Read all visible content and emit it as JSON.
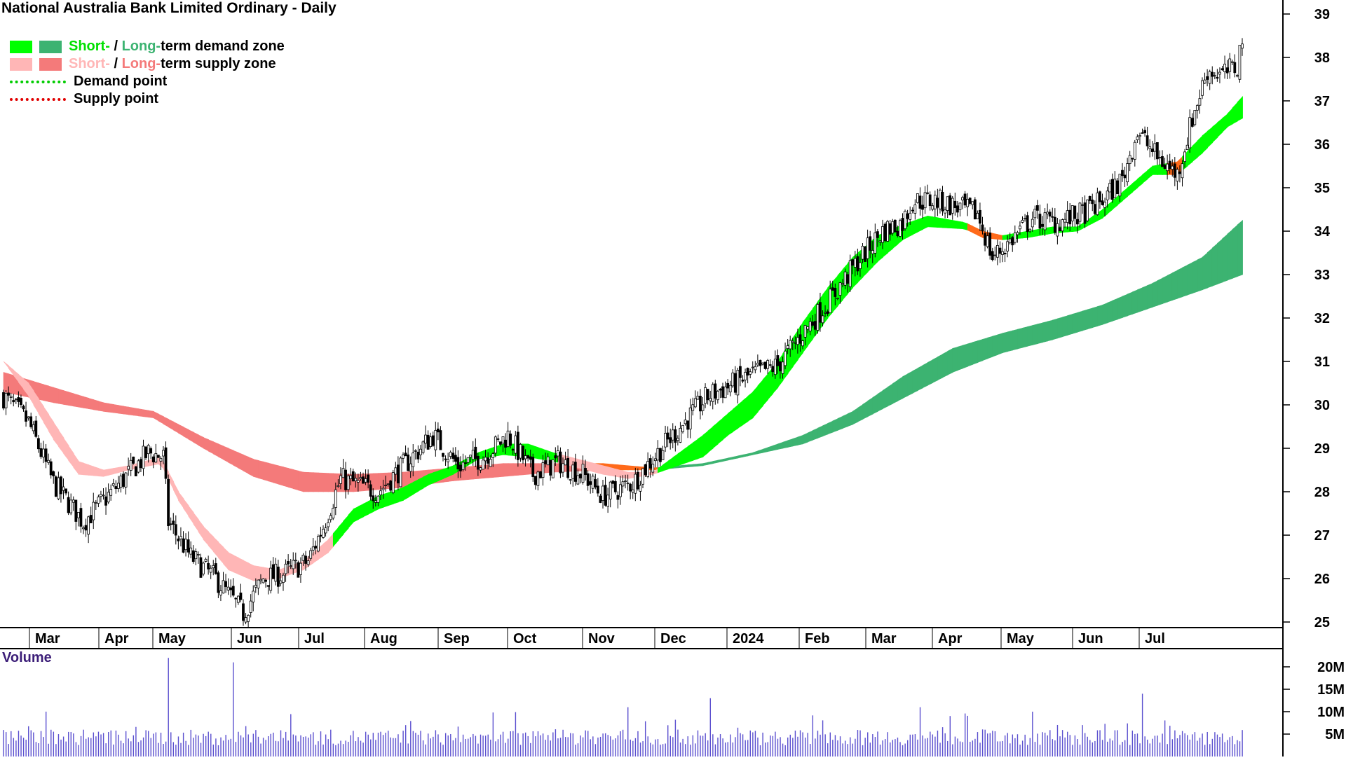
{
  "title": "National Australia Bank Limited Ordinary - Daily",
  "legend": {
    "demand": {
      "short": "Short-",
      "sep": " / ",
      "long": "Long-",
      "rest": "term demand zone"
    },
    "supply": {
      "short": "Short-",
      "sep": " / ",
      "long": "Long-",
      "rest": "term supply zone"
    },
    "demand_point": "Demand point",
    "supply_point": "Supply point"
  },
  "colors": {
    "short_demand": "#00ff00",
    "long_demand": "#3cb371",
    "short_supply": "#ffb6b6",
    "long_supply": "#f47a7a",
    "band_bearish_cross": "#ff6a1a",
    "demand_point": "#00cc00",
    "supply_point": "#e00000",
    "volume_bar": "#5a4fcf",
    "volume_label": "#3c1e78",
    "axis": "#000000"
  },
  "chart_data": [
    {
      "type": "candlestick",
      "title": "National Australia Bank Limited Ordinary - Daily",
      "y_ticks": [
        25,
        26,
        27,
        28,
        29,
        30,
        31,
        32,
        33,
        34,
        35,
        36,
        37,
        38,
        39
      ],
      "ylim": [
        24.7,
        39.3
      ],
      "x_ticks": [
        "Mar",
        "Apr",
        "May",
        "Jun",
        "Jul",
        "Aug",
        "Sep",
        "Oct",
        "Nov",
        "Dec",
        "2024",
        "Feb",
        "Mar",
        "Apr",
        "May",
        "Jun",
        "Jul"
      ],
      "price_path": [
        [
          0,
          30.2
        ],
        [
          10,
          29.6
        ],
        [
          20,
          28.2
        ],
        [
          32,
          27.3
        ],
        [
          45,
          28.1
        ],
        [
          58,
          28.9
        ],
        [
          64,
          28.8
        ],
        [
          66,
          27.3
        ],
        [
          75,
          26.5
        ],
        [
          85,
          26.0
        ],
        [
          96,
          25.2
        ],
        [
          104,
          26.0
        ],
        [
          112,
          26.1
        ],
        [
          122,
          26.4
        ],
        [
          128,
          27.2
        ],
        [
          135,
          28.3
        ],
        [
          150,
          28.0
        ],
        [
          162,
          28.7
        ],
        [
          172,
          29.3
        ],
        [
          182,
          28.6
        ],
        [
          192,
          28.8
        ],
        [
          202,
          29.3
        ],
        [
          212,
          28.4
        ],
        [
          222,
          28.7
        ],
        [
          232,
          28.4
        ],
        [
          240,
          27.9
        ],
        [
          252,
          28.2
        ],
        [
          262,
          28.9
        ],
        [
          282,
          30.2
        ],
        [
          300,
          30.7
        ],
        [
          310,
          30.9
        ],
        [
          322,
          31.8
        ],
        [
          332,
          32.5
        ],
        [
          342,
          33.3
        ],
        [
          352,
          34.0
        ],
        [
          360,
          34.2
        ],
        [
          364,
          34.7
        ],
        [
          374,
          34.7
        ],
        [
          390,
          34.4
        ],
        [
          396,
          33.4
        ],
        [
          402,
          33.7
        ],
        [
          412,
          34.3
        ],
        [
          422,
          34.2
        ],
        [
          432,
          34.4
        ],
        [
          440,
          34.7
        ],
        [
          448,
          35.2
        ],
        [
          454,
          36.3
        ],
        [
          462,
          35.7
        ],
        [
          470,
          35.3
        ],
        [
          476,
          36.6
        ],
        [
          482,
          37.7
        ],
        [
          488,
          37.6
        ],
        [
          494,
          37.8
        ],
        [
          496,
          38.5
        ]
      ],
      "short_term_band": {
        "upper": [
          [
            0,
            31.0
          ],
          [
            10,
            30.5
          ],
          [
            20,
            29.6
          ],
          [
            30,
            28.7
          ],
          [
            40,
            28.5
          ],
          [
            50,
            28.6
          ],
          [
            63,
            28.8
          ],
          [
            70,
            28.0
          ],
          [
            80,
            27.2
          ],
          [
            90,
            26.6
          ],
          [
            100,
            26.3
          ],
          [
            110,
            26.2
          ],
          [
            120,
            26.4
          ],
          [
            130,
            26.9
          ],
          [
            140,
            27.6
          ],
          [
            150,
            27.9
          ],
          [
            160,
            28.1
          ],
          [
            170,
            28.4
          ],
          [
            180,
            28.6
          ],
          [
            190,
            28.9
          ],
          [
            200,
            29.1
          ],
          [
            210,
            29.1
          ],
          [
            220,
            28.9
          ],
          [
            230,
            28.75
          ],
          [
            240,
            28.6
          ],
          [
            250,
            28.45
          ],
          [
            260,
            28.45
          ],
          [
            280,
            29.3
          ],
          [
            290,
            29.8
          ],
          [
            300,
            30.3
          ],
          [
            310,
            31.0
          ],
          [
            320,
            31.9
          ],
          [
            330,
            32.7
          ],
          [
            340,
            33.4
          ],
          [
            350,
            33.9
          ],
          [
            360,
            34.15
          ],
          [
            370,
            34.35
          ],
          [
            385,
            34.2
          ],
          [
            392,
            34.0
          ],
          [
            400,
            33.9
          ],
          [
            410,
            34.0
          ],
          [
            420,
            34.1
          ],
          [
            430,
            34.1
          ],
          [
            440,
            34.5
          ],
          [
            450,
            35.0
          ],
          [
            460,
            35.5
          ],
          [
            470,
            35.6
          ],
          [
            480,
            36.2
          ],
          [
            490,
            36.7
          ],
          [
            496,
            37.1
          ]
        ],
        "lower": [
          [
            0,
            31.0
          ],
          [
            10,
            30.2
          ],
          [
            20,
            29.2
          ],
          [
            30,
            28.4
          ],
          [
            40,
            28.35
          ],
          [
            50,
            28.5
          ],
          [
            63,
            28.65
          ],
          [
            70,
            27.8
          ],
          [
            80,
            26.9
          ],
          [
            90,
            26.2
          ],
          [
            100,
            25.95
          ],
          [
            110,
            26.0
          ],
          [
            120,
            26.2
          ],
          [
            130,
            26.6
          ],
          [
            140,
            27.3
          ],
          [
            150,
            27.6
          ],
          [
            160,
            27.8
          ],
          [
            170,
            28.15
          ],
          [
            180,
            28.4
          ],
          [
            190,
            28.75
          ],
          [
            200,
            28.85
          ],
          [
            210,
            28.8
          ],
          [
            220,
            28.7
          ],
          [
            230,
            28.55
          ],
          [
            240,
            28.4
          ],
          [
            250,
            28.3
          ],
          [
            260,
            28.4
          ],
          [
            280,
            28.8
          ],
          [
            290,
            29.3
          ],
          [
            300,
            29.7
          ],
          [
            310,
            30.4
          ],
          [
            320,
            31.2
          ],
          [
            330,
            32.0
          ],
          [
            340,
            32.7
          ],
          [
            350,
            33.3
          ],
          [
            360,
            33.8
          ],
          [
            370,
            34.1
          ],
          [
            385,
            34.05
          ],
          [
            392,
            33.85
          ],
          [
            400,
            33.8
          ],
          [
            410,
            33.85
          ],
          [
            420,
            33.95
          ],
          [
            430,
            34.0
          ],
          [
            440,
            34.3
          ],
          [
            450,
            34.8
          ],
          [
            460,
            35.3
          ],
          [
            470,
            35.3
          ],
          [
            480,
            35.8
          ],
          [
            490,
            36.4
          ],
          [
            496,
            36.6
          ]
        ]
      },
      "long_term_band": {
        "upper": [
          [
            0,
            30.75
          ],
          [
            20,
            30.4
          ],
          [
            40,
            30.05
          ],
          [
            60,
            29.85
          ],
          [
            80,
            29.25
          ],
          [
            100,
            28.75
          ],
          [
            120,
            28.45
          ],
          [
            140,
            28.4
          ],
          [
            160,
            28.45
          ],
          [
            180,
            28.55
          ],
          [
            200,
            28.65
          ],
          [
            220,
            28.65
          ],
          [
            240,
            28.65
          ],
          [
            260,
            28.55
          ],
          [
            280,
            28.65
          ],
          [
            300,
            28.9
          ],
          [
            320,
            29.3
          ],
          [
            340,
            29.85
          ],
          [
            360,
            30.65
          ],
          [
            380,
            31.3
          ],
          [
            400,
            31.65
          ],
          [
            420,
            31.95
          ],
          [
            440,
            32.3
          ],
          [
            460,
            32.8
          ],
          [
            480,
            33.4
          ],
          [
            496,
            34.25
          ]
        ],
        "lower": [
          [
            0,
            30.3
          ],
          [
            20,
            30.05
          ],
          [
            40,
            29.85
          ],
          [
            60,
            29.7
          ],
          [
            80,
            29.0
          ],
          [
            100,
            28.35
          ],
          [
            120,
            28.0
          ],
          [
            140,
            28.0
          ],
          [
            160,
            28.1
          ],
          [
            180,
            28.25
          ],
          [
            200,
            28.35
          ],
          [
            220,
            28.45
          ],
          [
            240,
            28.5
          ],
          [
            260,
            28.5
          ],
          [
            280,
            28.6
          ],
          [
            300,
            28.85
          ],
          [
            320,
            29.1
          ],
          [
            340,
            29.55
          ],
          [
            360,
            30.15
          ],
          [
            380,
            30.75
          ],
          [
            400,
            31.2
          ],
          [
            420,
            31.5
          ],
          [
            440,
            31.85
          ],
          [
            460,
            32.25
          ],
          [
            480,
            32.65
          ],
          [
            496,
            33.0
          ]
        ]
      },
      "last_close": 38.5
    },
    {
      "type": "bar",
      "title": "Volume",
      "y_ticks": [
        "5M",
        "10M",
        "15M",
        "20M"
      ],
      "ylim": [
        0,
        24000000
      ],
      "notable_spikes": [
        {
          "x": 66,
          "value": 22000000
        },
        {
          "x": 92,
          "value": 21000000
        },
        {
          "x": 250,
          "value": 11000000
        },
        {
          "x": 283,
          "value": 13000000
        },
        {
          "x": 367,
          "value": 11000000
        },
        {
          "x": 412,
          "value": 10000000
        },
        {
          "x": 456,
          "value": 14000000
        }
      ]
    }
  ],
  "volume_label": "Volume"
}
